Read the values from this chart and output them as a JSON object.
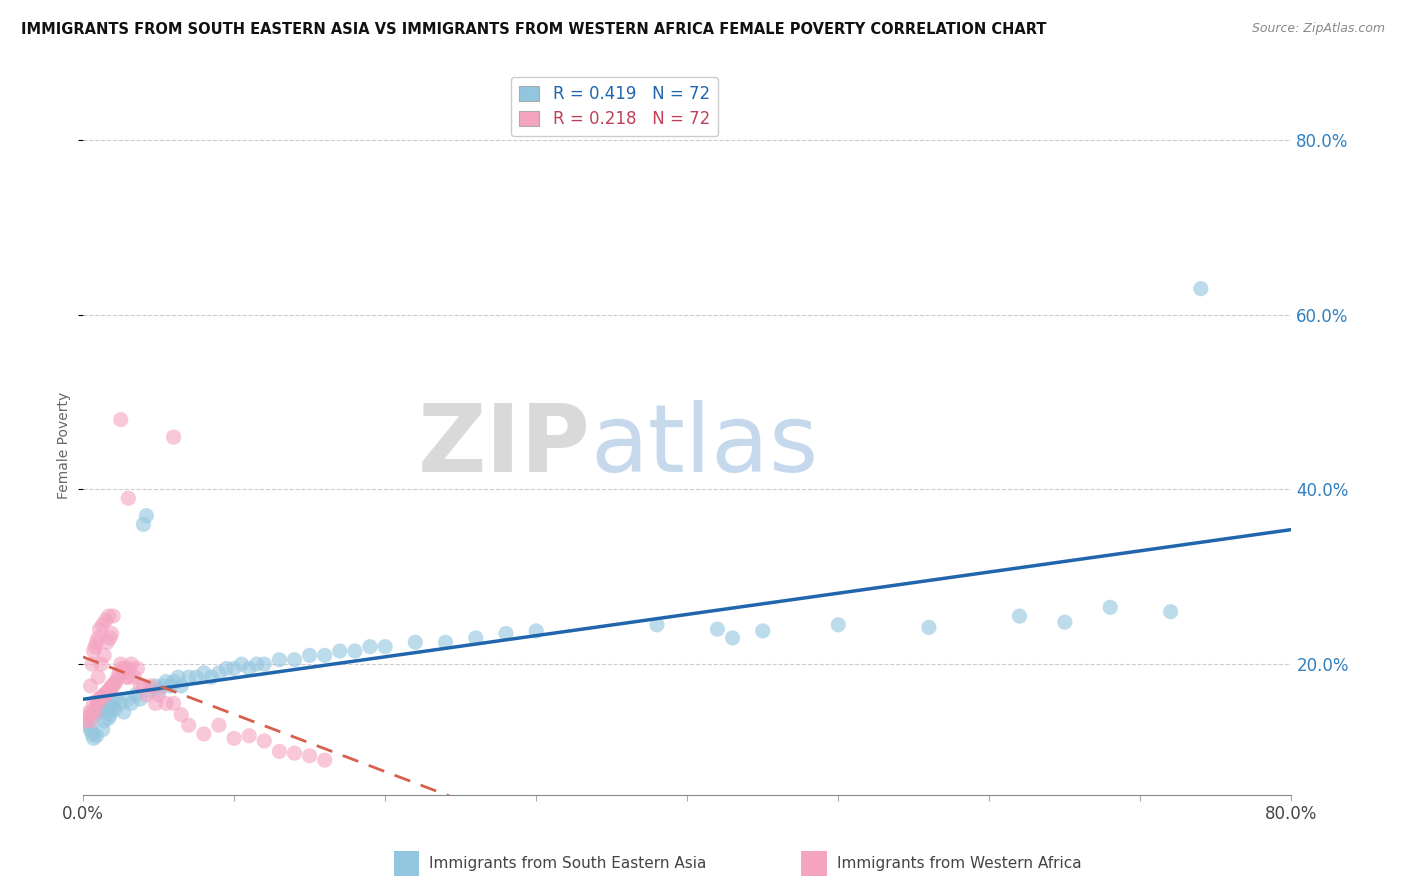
{
  "title": "IMMIGRANTS FROM SOUTH EASTERN ASIA VS IMMIGRANTS FROM WESTERN AFRICA FEMALE POVERTY CORRELATION CHART",
  "source": "Source: ZipAtlas.com",
  "ylabel": "Female Poverty",
  "xlim": [
    0.0,
    0.8
  ],
  "ylim": [
    0.05,
    0.85
  ],
  "legend1_label": "R = 0.419   N = 72",
  "legend2_label": "R = 0.218   N = 72",
  "sea_color": "#92c5de",
  "waf_color": "#f4a3c0",
  "sea_line_color": "#2166ac",
  "waf_line_color": "#d6604d",
  "watermark_zip": "ZIP",
  "watermark_atlas": "atlas",
  "sea_label": "Immigrants from South Eastern Asia",
  "waf_label": "Immigrants from Western Africa",
  "sea_x": [
    0.003,
    0.005,
    0.006,
    0.007,
    0.008,
    0.009,
    0.01,
    0.01,
    0.011,
    0.012,
    0.013,
    0.014,
    0.015,
    0.016,
    0.017,
    0.018,
    0.019,
    0.02,
    0.021,
    0.022,
    0.025,
    0.027,
    0.03,
    0.032,
    0.035,
    0.038,
    0.04,
    0.042,
    0.045,
    0.048,
    0.05,
    0.053,
    0.055,
    0.058,
    0.06,
    0.063,
    0.065,
    0.07,
    0.075,
    0.08,
    0.085,
    0.09,
    0.095,
    0.1,
    0.105,
    0.11,
    0.115,
    0.12,
    0.13,
    0.14,
    0.15,
    0.16,
    0.17,
    0.18,
    0.19,
    0.2,
    0.22,
    0.24,
    0.26,
    0.28,
    0.3,
    0.38,
    0.42,
    0.43,
    0.45,
    0.5,
    0.56,
    0.62,
    0.65,
    0.68,
    0.72,
    0.74
  ],
  "sea_y": [
    0.13,
    0.125,
    0.12,
    0.115,
    0.14,
    0.118,
    0.145,
    0.155,
    0.148,
    0.152,
    0.125,
    0.135,
    0.16,
    0.148,
    0.138,
    0.142,
    0.15,
    0.155,
    0.148,
    0.16,
    0.155,
    0.145,
    0.16,
    0.155,
    0.165,
    0.16,
    0.36,
    0.37,
    0.17,
    0.175,
    0.17,
    0.175,
    0.18,
    0.175,
    0.18,
    0.185,
    0.175,
    0.185,
    0.185,
    0.19,
    0.185,
    0.19,
    0.195,
    0.195,
    0.2,
    0.195,
    0.2,
    0.2,
    0.205,
    0.205,
    0.21,
    0.21,
    0.215,
    0.215,
    0.22,
    0.22,
    0.225,
    0.225,
    0.23,
    0.235,
    0.238,
    0.245,
    0.24,
    0.23,
    0.238,
    0.245,
    0.242,
    0.255,
    0.248,
    0.265,
    0.26,
    0.63
  ],
  "waf_x": [
    0.002,
    0.003,
    0.004,
    0.005,
    0.005,
    0.006,
    0.006,
    0.007,
    0.007,
    0.008,
    0.008,
    0.009,
    0.009,
    0.01,
    0.01,
    0.01,
    0.011,
    0.011,
    0.012,
    0.012,
    0.013,
    0.013,
    0.014,
    0.014,
    0.015,
    0.015,
    0.016,
    0.016,
    0.017,
    0.017,
    0.018,
    0.018,
    0.019,
    0.019,
    0.02,
    0.02,
    0.021,
    0.022,
    0.023,
    0.024,
    0.025,
    0.026,
    0.027,
    0.028,
    0.029,
    0.03,
    0.031,
    0.032,
    0.034,
    0.036,
    0.038,
    0.04,
    0.042,
    0.045,
    0.048,
    0.05,
    0.055,
    0.06,
    0.065,
    0.07,
    0.08,
    0.09,
    0.1,
    0.11,
    0.12,
    0.13,
    0.14,
    0.15,
    0.16,
    0.06,
    0.03,
    0.025
  ],
  "waf_y": [
    0.135,
    0.14,
    0.145,
    0.135,
    0.175,
    0.145,
    0.2,
    0.155,
    0.215,
    0.145,
    0.22,
    0.158,
    0.225,
    0.155,
    0.185,
    0.23,
    0.16,
    0.24,
    0.162,
    0.2,
    0.163,
    0.245,
    0.165,
    0.21,
    0.165,
    0.25,
    0.168,
    0.225,
    0.17,
    0.255,
    0.172,
    0.23,
    0.175,
    0.235,
    0.175,
    0.255,
    0.178,
    0.18,
    0.185,
    0.19,
    0.2,
    0.195,
    0.19,
    0.195,
    0.185,
    0.185,
    0.195,
    0.2,
    0.185,
    0.195,
    0.175,
    0.175,
    0.165,
    0.175,
    0.155,
    0.165,
    0.155,
    0.155,
    0.142,
    0.13,
    0.12,
    0.13,
    0.115,
    0.118,
    0.112,
    0.1,
    0.098,
    0.095,
    0.09,
    0.46,
    0.39,
    0.48
  ]
}
